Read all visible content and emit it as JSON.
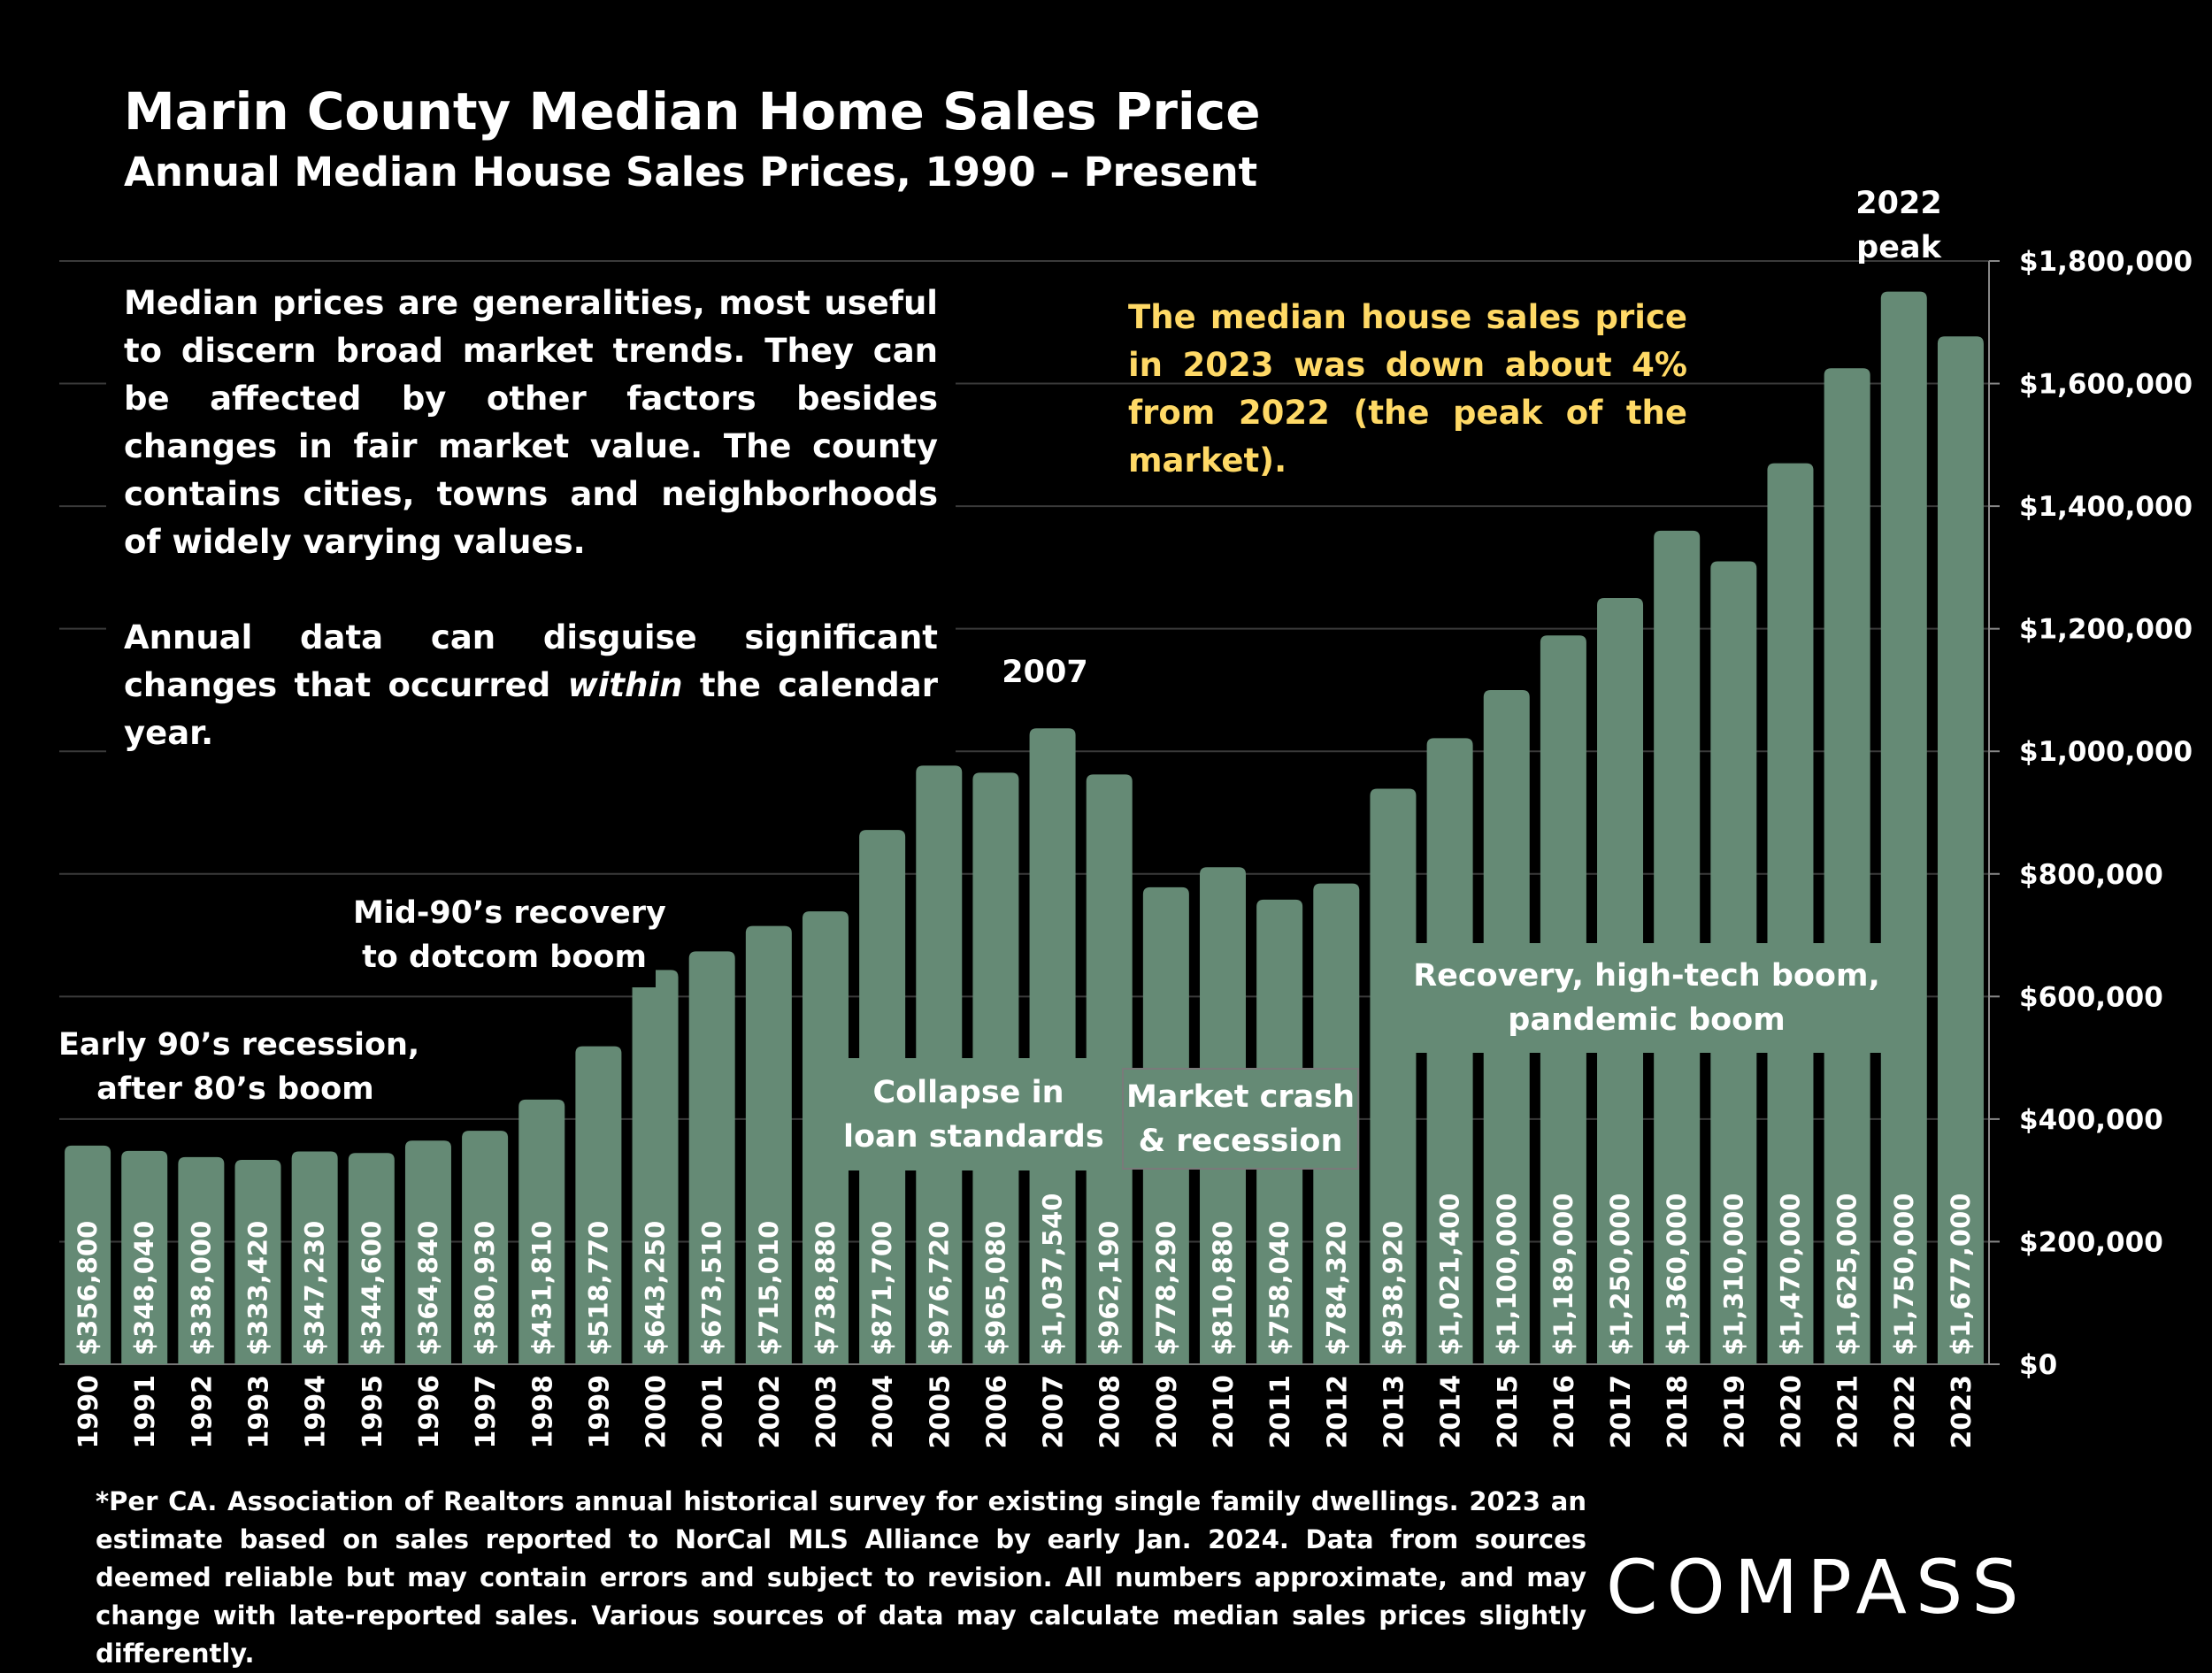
{
  "title": "Marin County Median Home Sales Price",
  "subtitle": "Annual Median House Sales Prices, 1990 – Present",
  "notes": {
    "p1": "Median prices are generalities, most useful to discern broad market trends. They can be affected by other factors besides changes in fair market value. The county contains cities, towns and neighborhoods of widely varying values.",
    "p2_before": "Annual data can disguise significant changes that occurred ",
    "p2_italic": "within",
    "p2_after": " the calendar year."
  },
  "highlight": "The median house sales price in 2023 was down about 4% from 2022 (the peak of the market).",
  "annotations": {
    "peak_2022_line1": "2022",
    "peak_2022_line2": "peak",
    "peak_2007": "2007",
    "early90s_line1": "Early 90’s recession,",
    "early90s_line2": "after 80’s boom",
    "mid90s_line1": "Mid-90’s recovery",
    "mid90s_line2": "to dotcom boom",
    "collapse_line1": "Collapse in",
    "collapse_line2": "loan standards",
    "crash_line1": "Market crash",
    "crash_line2": "& recession",
    "recovery_line1": "Recovery, high-tech boom,",
    "recovery_line2": "pandemic boom"
  },
  "footnote": "*Per CA. Association of Realtors annual historical survey for existing single family dwellings. 2023 an estimate based on sales reported to NorCal MLS Alliance by early Jan. 2024. Data from sources deemed reliable but may contain errors and subject to revision. All numbers approximate, and may change with late-reported sales. Various sources of data may calculate median sales prices slightly differently.",
  "logo": "COMPASS",
  "colors": {
    "bar": "#658a75",
    "background": "#000000",
    "highlight_text": "#ffd966",
    "gridline": "#3a3a3a"
  },
  "chart_data": {
    "type": "bar",
    "title": "Marin County Median Home Sales Price",
    "subtitle": "Annual Median House Sales Prices, 1990 – Present",
    "categories": [
      "1990",
      "1991",
      "1992",
      "1993",
      "1994",
      "1995",
      "1996",
      "1997",
      "1998",
      "1999",
      "2000",
      "2001",
      "2002",
      "2003",
      "2004",
      "2005",
      "2006",
      "2007",
      "2008",
      "2009",
      "2010",
      "2011",
      "2012",
      "2013",
      "2014",
      "2015",
      "2016",
      "2017",
      "2018",
      "2019",
      "2020",
      "2021",
      "2022",
      "2023"
    ],
    "values": [
      356800,
      348040,
      338000,
      333420,
      347230,
      344600,
      364840,
      380930,
      431810,
      518770,
      643250,
      673510,
      715010,
      738880,
      871700,
      976720,
      965080,
      1037540,
      962190,
      778290,
      810880,
      758040,
      784320,
      938920,
      1021400,
      1100000,
      1189000,
      1250000,
      1360000,
      1310000,
      1470000,
      1625000,
      1750000,
      1677000
    ],
    "data_labels": [
      "$356,800",
      "$348,040",
      "$338,000",
      "$333,420",
      "$347,230",
      "$344,600",
      "$364,840",
      "$380,930",
      "$431,810",
      "$518,770",
      "$643,250",
      "$673,510",
      "$715,010",
      "$738,880",
      "$871,700",
      "$976,720",
      "$965,080",
      "$1,037,540",
      "$962,190",
      "$778,290",
      "$810,880",
      "$758,040",
      "$784,320",
      "$938,920",
      "$1,021,400",
      "$1,100,000",
      "$1,189,000",
      "$1,250,000",
      "$1,360,000",
      "$1,310,000",
      "$1,470,000",
      "$1,625,000",
      "$1,750,000",
      "$1,677,000"
    ],
    "ylim": [
      0,
      1800000
    ],
    "yticks": [
      0,
      200000,
      400000,
      600000,
      800000,
      1000000,
      1200000,
      1400000,
      1600000,
      1800000
    ],
    "ytick_labels": [
      "$0",
      "$200,000",
      "$400,000",
      "$600,000",
      "$800,000",
      "$1,000,000",
      "$1,200,000",
      "$1,400,000",
      "$1,600,000",
      "$1,800,000"
    ],
    "yaxis_position": "right",
    "grid": true,
    "xlabel": "",
    "ylabel": ""
  }
}
